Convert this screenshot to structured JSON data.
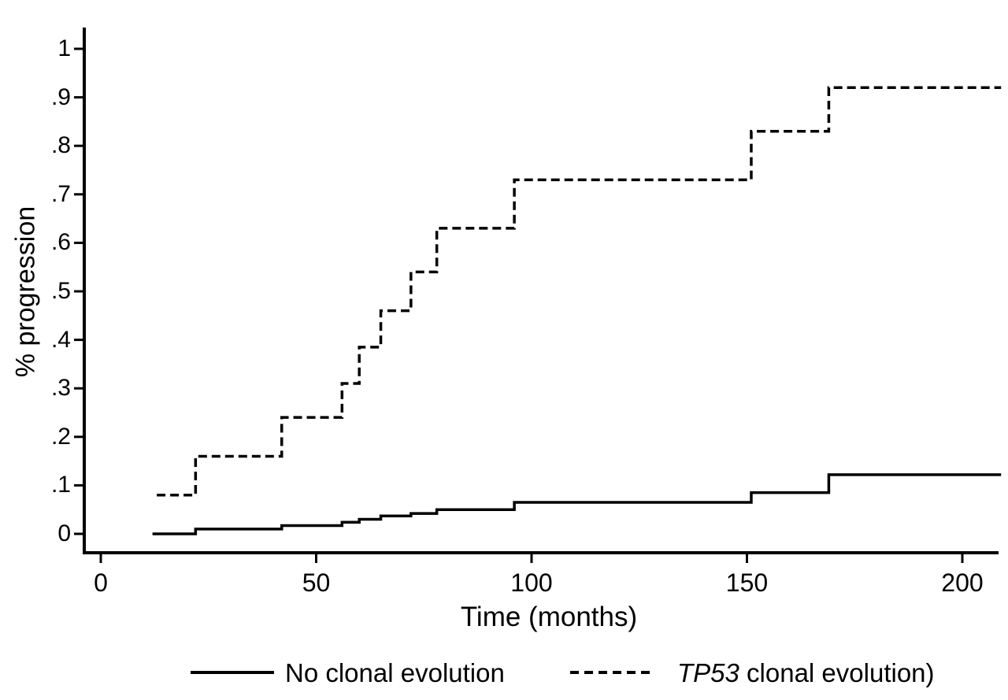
{
  "chart_data": {
    "type": "line",
    "subtype": "step-after-cumulative-incidence",
    "title": "",
    "xlabel": "Time (months)",
    "ylabel": "% progression",
    "xlim": [
      0,
      209
    ],
    "ylim": [
      0,
      1.05
    ],
    "grid": false,
    "legend_position": "bottom-center",
    "x_ticks": [
      {
        "value": 0,
        "label": "0"
      },
      {
        "value": 50,
        "label": "50"
      },
      {
        "value": 100,
        "label": "100"
      },
      {
        "value": 150,
        "label": "150"
      },
      {
        "value": 200,
        "label": "200"
      }
    ],
    "y_ticks": [
      {
        "value": 0,
        "label": "0"
      },
      {
        "value": 0.1,
        "label": ".1"
      },
      {
        "value": 0.2,
        "label": ".2"
      },
      {
        "value": 0.3,
        "label": ".3"
      },
      {
        "value": 0.4,
        "label": ".4"
      },
      {
        "value": 0.5,
        "label": ".5"
      },
      {
        "value": 0.6,
        "label": ".6"
      },
      {
        "value": 0.7,
        "label": ".7"
      },
      {
        "value": 0.8,
        "label": ".8"
      },
      {
        "value": 0.9,
        "label": ".9"
      },
      {
        "value": 1,
        "label": "1"
      }
    ],
    "series": [
      {
        "name": "No clonal evolution",
        "line_style": "solid",
        "color": "#000000",
        "x": [
          12,
          22,
          42,
          56,
          60,
          65,
          72,
          78,
          96,
          151,
          169
        ],
        "y": [
          0,
          0.01,
          0.017,
          0.024,
          0.03,
          0.037,
          0.042,
          0.05,
          0.065,
          0.085,
          0.122
        ],
        "x_end": 209
      },
      {
        "name": "TP53 clonal evolution)",
        "line_style": "dashed",
        "color": "#000000",
        "x": [
          13,
          22,
          42,
          56,
          60,
          65,
          72,
          78,
          96,
          151,
          169
        ],
        "y": [
          0.08,
          0.16,
          0.24,
          0.31,
          0.385,
          0.46,
          0.54,
          0.63,
          0.73,
          0.83,
          0.92
        ],
        "x_end": 209
      }
    ]
  },
  "legend": {
    "items": [
      {
        "swatch": "solid-line",
        "label": "No clonal evolution"
      },
      {
        "swatch": "dashed-line",
        "label_italic": "TP53",
        "label_rest": " clonal evolution)"
      }
    ]
  }
}
